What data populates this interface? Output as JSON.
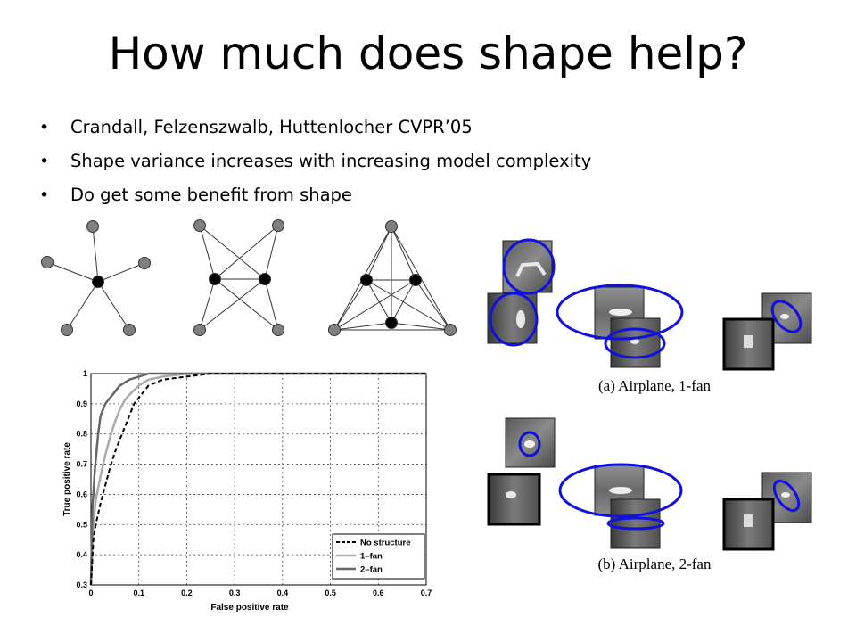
{
  "slide": {
    "title": "How much does shape help?",
    "bullets": [
      "Crandall, Felzenszwalb, Huttenlocher CVPR’05",
      "Shape variance increases with increasing model complexity",
      "Do get some benefit from shape"
    ]
  },
  "figure_captions": [
    "(a) Airplane, 1-fan",
    "(b) Airplane, 2-fan"
  ],
  "colors": {
    "ellipse_blue": "#1010e0",
    "node_gray": "#808080"
  },
  "chart_data": {
    "type": "line",
    "title": "",
    "xlabel": "False positive rate",
    "ylabel": "True positive rate",
    "xlim": [
      0,
      0.7
    ],
    "ylim": [
      0.3,
      1
    ],
    "xticks": [
      "0",
      "0.1",
      "0.2",
      "0.3",
      "0.4",
      "0.5",
      "0.6",
      "0.7"
    ],
    "yticks": [
      "0.3",
      "0.4",
      "0.5",
      "0.6",
      "0.7",
      "0.8",
      "0.9",
      "1"
    ],
    "grid": true,
    "legend_position": "bottom-right",
    "series": [
      {
        "name": "No structure",
        "color": "#000000",
        "dash": "dashed",
        "x": [
          0.0,
          0.005,
          0.01,
          0.02,
          0.03,
          0.04,
          0.05,
          0.06,
          0.07,
          0.08,
          0.09,
          0.1,
          0.12,
          0.15,
          0.2,
          0.25,
          0.3,
          0.7
        ],
        "y": [
          0.3,
          0.45,
          0.5,
          0.57,
          0.63,
          0.69,
          0.74,
          0.78,
          0.82,
          0.86,
          0.9,
          0.92,
          0.96,
          0.98,
          0.99,
          1.0,
          1.0,
          1.0
        ]
      },
      {
        "name": "1–fan",
        "color": "#aaaaaa",
        "dash": "solid",
        "x": [
          0.0,
          0.005,
          0.01,
          0.02,
          0.03,
          0.04,
          0.05,
          0.06,
          0.07,
          0.08,
          0.1,
          0.12,
          0.15,
          0.2,
          0.7
        ],
        "y": [
          0.3,
          0.5,
          0.58,
          0.66,
          0.73,
          0.79,
          0.84,
          0.88,
          0.91,
          0.93,
          0.96,
          0.98,
          0.99,
          1.0,
          1.0
        ]
      },
      {
        "name": "2–fan",
        "color": "#666666",
        "dash": "solid",
        "x": [
          0.0,
          0.003,
          0.008,
          0.015,
          0.02,
          0.03,
          0.04,
          0.05,
          0.06,
          0.07,
          0.08,
          0.1,
          0.12,
          0.7
        ],
        "y": [
          0.3,
          0.55,
          0.68,
          0.8,
          0.86,
          0.9,
          0.92,
          0.94,
          0.96,
          0.97,
          0.98,
          0.99,
          1.0,
          1.0
        ]
      }
    ]
  }
}
